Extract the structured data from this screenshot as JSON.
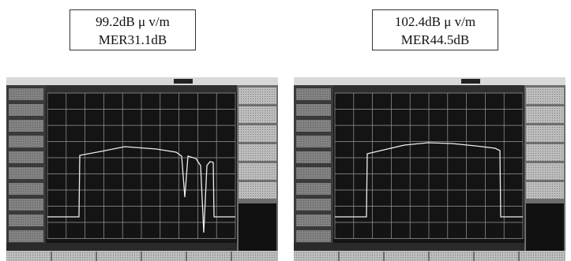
{
  "panels": [
    {
      "lines": [
        "99.2dB μ v/m",
        "MER31.1dB"
      ]
    },
    {
      "lines": [
        "102.4dB μ v/m",
        "MER44.5dB"
      ]
    }
  ]
}
